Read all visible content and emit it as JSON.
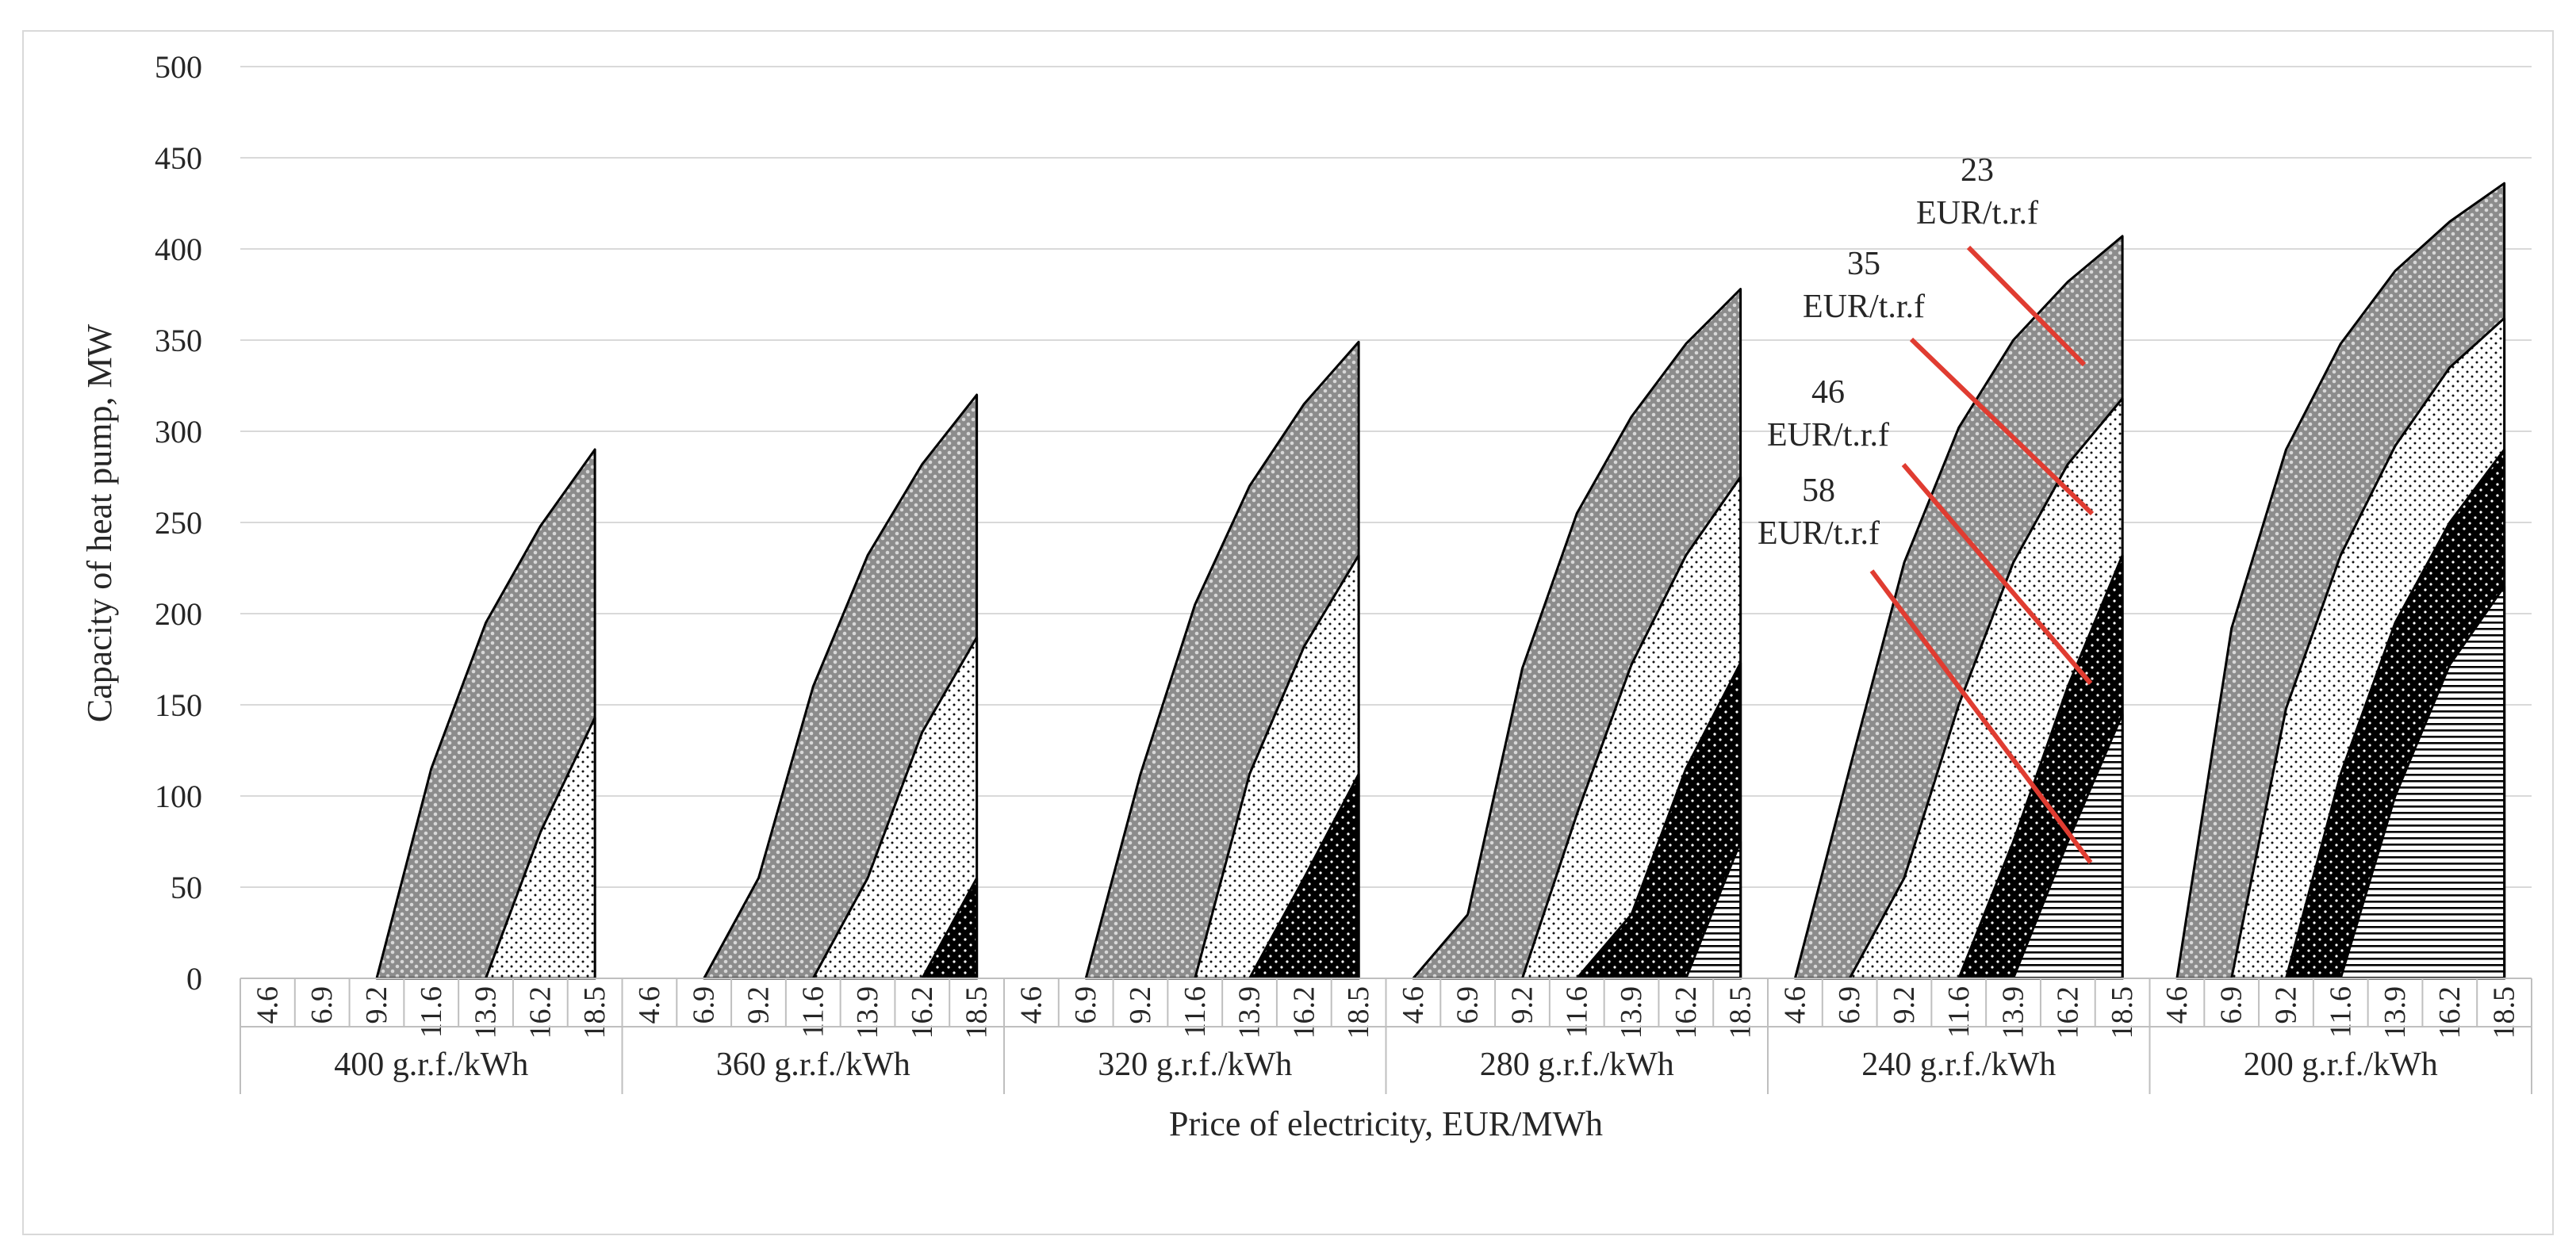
{
  "chart_data": {
    "type": "area",
    "title": "",
    "xlabel": "Price of electricity, EUR/MWh",
    "ylabel": "Capacity of heat pump, MW",
    "ylim": [
      0,
      500
    ],
    "yticks": [
      0,
      50,
      100,
      150,
      200,
      250,
      300,
      350,
      400,
      450,
      500
    ],
    "grid": true,
    "legend": "none",
    "prices": [
      "4.6",
      "6.9",
      "9.2",
      "11.6",
      "13.9",
      "16.2",
      "18.5"
    ],
    "groups": [
      {
        "label": "400 g.r.f./kWh",
        "series": [
          {
            "name": "23 EUR/t.r.f",
            "values": [
              0,
              0,
              0,
              115,
              195,
              248,
              290
            ]
          },
          {
            "name": "35 EUR/t.r.f",
            "values": [
              0,
              0,
              0,
              0,
              0,
              80,
              143
            ]
          },
          {
            "name": "46 EUR/t.r.f",
            "values": [
              0,
              0,
              0,
              0,
              0,
              0,
              0
            ]
          },
          {
            "name": "58 EUR/t.r.f",
            "values": [
              0,
              0,
              0,
              0,
              0,
              0,
              0
            ]
          }
        ]
      },
      {
        "label": "360 g.r.f./kWh",
        "series": [
          {
            "name": "23 EUR/t.r.f",
            "values": [
              0,
              0,
              55,
              160,
              232,
              282,
              320
            ]
          },
          {
            "name": "35 EUR/t.r.f",
            "values": [
              0,
              0,
              0,
              0,
              55,
              135,
              187
            ]
          },
          {
            "name": "46 EUR/t.r.f",
            "values": [
              0,
              0,
              0,
              0,
              0,
              0,
              55
            ]
          },
          {
            "name": "58 EUR/t.r.f",
            "values": [
              0,
              0,
              0,
              0,
              0,
              0,
              0
            ]
          }
        ]
      },
      {
        "label": "320 g.r.f./kWh",
        "series": [
          {
            "name": "23 EUR/t.r.f",
            "values": [
              0,
              0,
              112,
              205,
              270,
              315,
              349
            ]
          },
          {
            "name": "35 EUR/t.r.f",
            "values": [
              0,
              0,
              0,
              0,
              112,
              182,
              232
            ]
          },
          {
            "name": "46 EUR/t.r.f",
            "values": [
              0,
              0,
              0,
              0,
              0,
              55,
              112
            ]
          },
          {
            "name": "58 EUR/t.r.f",
            "values": [
              0,
              0,
              0,
              0,
              0,
              0,
              0
            ]
          }
        ]
      },
      {
        "label": "280 g.r.f./kWh",
        "series": [
          {
            "name": "23 EUR/t.r.f",
            "values": [
              0,
              35,
              170,
              255,
              308,
              348,
              378
            ]
          },
          {
            "name": "35 EUR/t.r.f",
            "values": [
              0,
              0,
              0,
              90,
              172,
              232,
              275
            ]
          },
          {
            "name": "46 EUR/t.r.f",
            "values": [
              0,
              0,
              0,
              0,
              35,
              115,
              173
            ]
          },
          {
            "name": "58 EUR/t.r.f",
            "values": [
              0,
              0,
              0,
              0,
              0,
              0,
              75
            ]
          }
        ]
      },
      {
        "label": "240 g.r.f./kWh",
        "series": [
          {
            "name": "23 EUR/t.r.f",
            "values": [
              0,
              115,
              228,
              302,
              350,
              382,
              407
            ]
          },
          {
            "name": "35 EUR/t.r.f",
            "values": [
              0,
              0,
              55,
              150,
              228,
              282,
              318
            ]
          },
          {
            "name": "46 EUR/t.r.f",
            "values": [
              0,
              0,
              0,
              0,
              75,
              160,
              232
            ]
          },
          {
            "name": "58 EUR/t.r.f",
            "values": [
              0,
              0,
              0,
              0,
              0,
              75,
              145
            ]
          }
        ]
      },
      {
        "label": "200 g.r.f./kWh",
        "series": [
          {
            "name": "23 EUR/t.r.f",
            "values": [
              0,
              192,
              290,
              348,
              388,
              415,
              436
            ]
          },
          {
            "name": "35 EUR/t.r.f",
            "values": [
              0,
              0,
              148,
              232,
              292,
              335,
              362
            ]
          },
          {
            "name": "46 EUR/t.r.f",
            "values": [
              0,
              0,
              0,
              112,
              195,
              250,
              290
            ]
          },
          {
            "name": "58 EUR/t.r.f",
            "values": [
              0,
              0,
              0,
              0,
              100,
              172,
              215
            ]
          }
        ]
      }
    ],
    "annotations": [
      {
        "line1": "23",
        "line2": "EUR/t.r.f"
      },
      {
        "line1": "35",
        "line2": "EUR/t.r.f"
      },
      {
        "line1": "46",
        "line2": "EUR/t.r.f"
      },
      {
        "line1": "58",
        "line2": "EUR/t.r.f"
      }
    ],
    "annotation_color": "#e03c31"
  }
}
